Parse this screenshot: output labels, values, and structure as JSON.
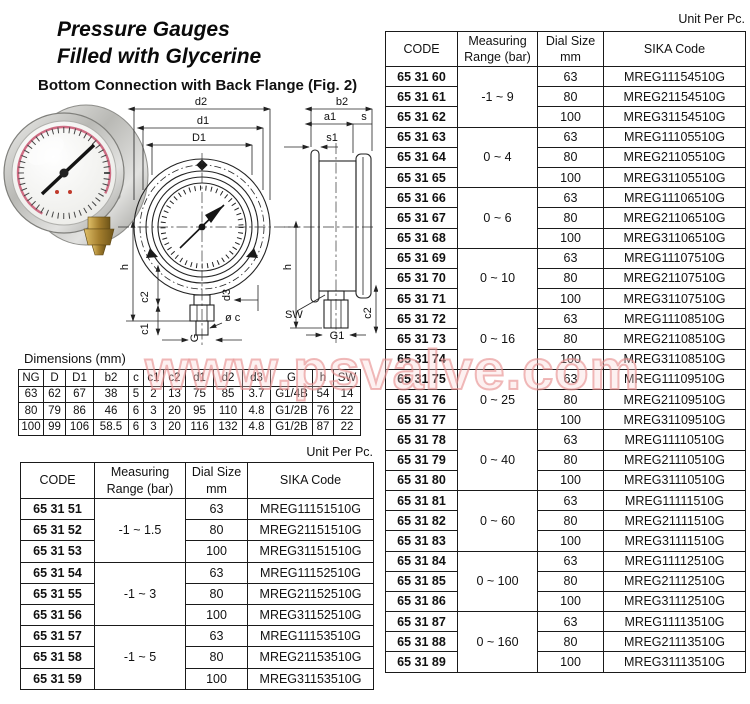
{
  "header": {
    "title_line1": "Pressure Gauges",
    "title_line2": "Filled with Glycerine",
    "subtitle": "Bottom Connection with Back Flange (Fig. 2)"
  },
  "watermark": "www.psvalve.com",
  "drawing": {
    "front_labels": {
      "d2": "d2",
      "d1": "d1",
      "D1": "D1",
      "h": "h",
      "c2": "c2",
      "c1": "c1",
      "d3": "d3",
      "phi_c": "ø c",
      "G": "G"
    },
    "side_labels": {
      "b2": "b2",
      "a1": "a1",
      "s": "s",
      "s1": "s1",
      "h": "h",
      "SW": "SW",
      "G1": "G1",
      "c2": "c2"
    }
  },
  "dimensions_table": {
    "caption": "Dimensions (mm)",
    "headers": [
      "NG",
      "D",
      "D1",
      "b2",
      "c",
      "c1",
      "c2",
      "d1",
      "d2",
      "d3",
      "G",
      "h",
      "SW"
    ],
    "rows": [
      [
        "63",
        "62",
        "67",
        "38",
        "5",
        "2",
        "13",
        "75",
        "85",
        "3.7",
        "G1/4B",
        "54",
        "14"
      ],
      [
        "80",
        "79",
        "86",
        "46",
        "6",
        "3",
        "20",
        "95",
        "110",
        "4.8",
        "G1/2B",
        "76",
        "22"
      ],
      [
        "100",
        "99",
        "106",
        "58.5",
        "6",
        "3",
        "20",
        "116",
        "132",
        "4.8",
        "G1/2B",
        "87",
        "22"
      ]
    ]
  },
  "left_table": {
    "unit_label": "Unit Per Pc.",
    "headers": [
      "CODE",
      "Measuring\nRange (bar)",
      "Dial Size\nmm",
      "SIKA Code"
    ],
    "groups": [
      {
        "range": "-1 ~ 1.5",
        "rows": [
          {
            "code": "65 31 51",
            "dial": "63",
            "sika": "MREG11151510G"
          },
          {
            "code": "65 31 52",
            "dial": "80",
            "sika": "MREG21151510G"
          },
          {
            "code": "65 31 53",
            "dial": "100",
            "sika": "MREG31151510G"
          }
        ]
      },
      {
        "range": "-1 ~ 3",
        "rows": [
          {
            "code": "65 31 54",
            "dial": "63",
            "sika": "MREG11152510G"
          },
          {
            "code": "65 31 55",
            "dial": "80",
            "sika": "MREG21152510G"
          },
          {
            "code": "65 31 56",
            "dial": "100",
            "sika": "MREG31152510G"
          }
        ]
      },
      {
        "range": "-1 ~ 5",
        "rows": [
          {
            "code": "65 31 57",
            "dial": "63",
            "sika": "MREG11153510G"
          },
          {
            "code": "65 31 58",
            "dial": "80",
            "sika": "MREG21153510G"
          },
          {
            "code": "65 31 59",
            "dial": "100",
            "sika": "MREG31153510G"
          }
        ]
      }
    ]
  },
  "right_table": {
    "unit_label": "Unit Per Pc.",
    "headers": [
      "CODE",
      "Measuring\nRange (bar)",
      "Dial Size\nmm",
      "SIKA Code"
    ],
    "groups": [
      {
        "range": "-1 ~ 9",
        "rows": [
          {
            "code": "65 31 60",
            "dial": "63",
            "sika": "MREG11154510G"
          },
          {
            "code": "65 31 61",
            "dial": "80",
            "sika": "MREG21154510G"
          },
          {
            "code": "65 31 62",
            "dial": "100",
            "sika": "MREG31154510G"
          }
        ]
      },
      {
        "range": "0 ~ 4",
        "rows": [
          {
            "code": "65 31 63",
            "dial": "63",
            "sika": "MREG11105510G"
          },
          {
            "code": "65 31 64",
            "dial": "80",
            "sika": "MREG21105510G"
          },
          {
            "code": "65 31 65",
            "dial": "100",
            "sika": "MREG31105510G"
          }
        ]
      },
      {
        "range": "0 ~ 6",
        "rows": [
          {
            "code": "65 31 66",
            "dial": "63",
            "sika": "MREG11106510G"
          },
          {
            "code": "65 31 67",
            "dial": "80",
            "sika": "MREG21106510G"
          },
          {
            "code": "65 31 68",
            "dial": "100",
            "sika": "MREG31106510G"
          }
        ]
      },
      {
        "range": "0 ~ 10",
        "rows": [
          {
            "code": "65 31 69",
            "dial": "63",
            "sika": "MREG11107510G"
          },
          {
            "code": "65 31 70",
            "dial": "80",
            "sika": "MREG21107510G"
          },
          {
            "code": "65 31 71",
            "dial": "100",
            "sika": "MREG31107510G"
          }
        ]
      },
      {
        "range": "0 ~ 16",
        "rows": [
          {
            "code": "65 31 72",
            "dial": "63",
            "sika": "MREG11108510G"
          },
          {
            "code": "65 31 73",
            "dial": "80",
            "sika": "MREG21108510G"
          },
          {
            "code": "65 31 74",
            "dial": "100",
            "sika": "MREG31108510G"
          }
        ]
      },
      {
        "range": "0 ~ 25",
        "rows": [
          {
            "code": "65 31 75",
            "dial": "63",
            "sika": "MREG11109510G"
          },
          {
            "code": "65 31 76",
            "dial": "80",
            "sika": "MREG21109510G"
          },
          {
            "code": "65 31 77",
            "dial": "100",
            "sika": "MREG31109510G"
          }
        ]
      },
      {
        "range": "0 ~ 40",
        "rows": [
          {
            "code": "65 31 78",
            "dial": "63",
            "sika": "MREG11110510G"
          },
          {
            "code": "65 31 79",
            "dial": "80",
            "sika": "MREG21110510G"
          },
          {
            "code": "65 31 80",
            "dial": "100",
            "sika": "MREG31110510G"
          }
        ]
      },
      {
        "range": "0 ~ 60",
        "rows": [
          {
            "code": "65 31 81",
            "dial": "63",
            "sika": "MREG11111510G"
          },
          {
            "code": "65 31 82",
            "dial": "80",
            "sika": "MREG21111510G"
          },
          {
            "code": "65 31 83",
            "dial": "100",
            "sika": "MREG31111510G"
          }
        ]
      },
      {
        "range": "0 ~ 100",
        "rows": [
          {
            "code": "65 31 84",
            "dial": "63",
            "sika": "MREG11112510G"
          },
          {
            "code": "65 31 85",
            "dial": "80",
            "sika": "MREG21112510G"
          },
          {
            "code": "65 31 86",
            "dial": "100",
            "sika": "MREG31112510G"
          }
        ]
      },
      {
        "range": "0 ~ 160",
        "rows": [
          {
            "code": "65 31 87",
            "dial": "63",
            "sika": "MREG11113510G"
          },
          {
            "code": "65 31 88",
            "dial": "80",
            "sika": "MREG21113510G"
          },
          {
            "code": "65 31 89",
            "dial": "100",
            "sika": "MREG31113510G"
          }
        ]
      }
    ]
  },
  "colors": {
    "watermark_pink": "#e68c8c",
    "brass": "#a07c2c",
    "chrome": "#c4c4c0",
    "dial_accent": "#cf6d84"
  }
}
